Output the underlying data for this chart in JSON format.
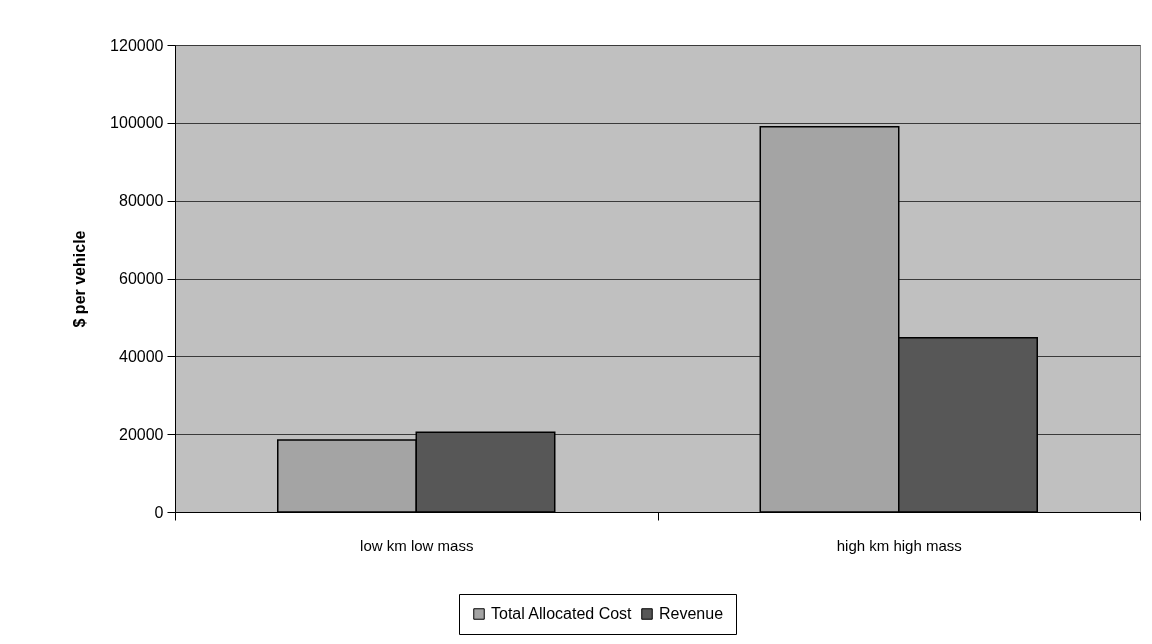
{
  "chart_data": {
    "type": "bar",
    "categories": [
      "low km low mass",
      "high km high mass"
    ],
    "series": [
      {
        "name": "Total Allocated Cost",
        "color": "#a4a4a4",
        "values": [
          18500,
          99000
        ]
      },
      {
        "name": "Revenue",
        "color": "#575757",
        "values": [
          20500,
          44800
        ]
      }
    ],
    "ylabel": "$ per vehicle",
    "ylim": [
      0,
      120000
    ],
    "yticks": [
      0,
      20000,
      40000,
      60000,
      80000,
      100000,
      120000
    ],
    "grid": "y",
    "legend": "bottom"
  }
}
